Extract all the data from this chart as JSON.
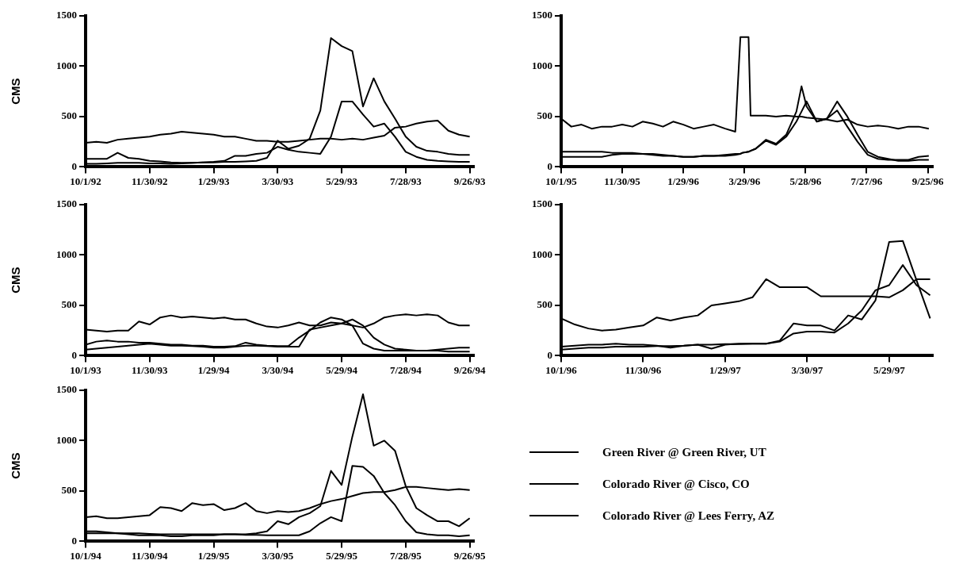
{
  "chart_data": [
    {
      "type": "line",
      "ylabel": "CMS",
      "ylim": [
        0,
        1500
      ],
      "yticks": [
        0,
        500,
        1000,
        1500
      ],
      "xlim": [
        "1992-10-01",
        "1993-09-30"
      ],
      "xticks": [
        {
          "value": "1992-10-01",
          "label": "10/1/92"
        },
        {
          "value": "1992-11-30",
          "label": "11/30/92"
        },
        {
          "value": "1993-01-29",
          "label": "1/29/93"
        },
        {
          "value": "1993-03-30",
          "label": "3/30/93"
        },
        {
          "value": "1993-05-29",
          "label": "5/29/93"
        },
        {
          "value": "1993-07-28",
          "label": "7/28/93"
        },
        {
          "value": "1993-09-26",
          "label": "9/26/93"
        }
      ],
      "x": [
        "1992-10-01",
        "1992-10-11",
        "1992-10-21",
        "1992-10-31",
        "1992-11-10",
        "1992-11-20",
        "1992-11-30",
        "1992-12-10",
        "1992-12-20",
        "1992-12-30",
        "1993-01-09",
        "1993-01-19",
        "1993-01-29",
        "1993-02-08",
        "1993-02-18",
        "1993-02-28",
        "1993-03-10",
        "1993-03-20",
        "1993-03-30",
        "1993-04-09",
        "1993-04-19",
        "1993-04-29",
        "1993-05-09",
        "1993-05-19",
        "1993-05-29",
        "1993-06-08",
        "1993-06-18",
        "1993-06-28",
        "1993-07-08",
        "1993-07-18",
        "1993-07-28",
        "1993-08-07",
        "1993-08-17",
        "1993-08-27",
        "1993-09-06",
        "1993-09-16",
        "1993-09-26"
      ],
      "series": [
        {
          "color": "#000000",
          "values": [
            80,
            80,
            80,
            140,
            90,
            80,
            60,
            55,
            45,
            40,
            40,
            45,
            45,
            50,
            50,
            55,
            60,
            90,
            260,
            180,
            210,
            280,
            560,
            1280,
            1200,
            1150,
            600,
            880,
            650,
            480,
            300,
            200,
            160,
            150,
            130,
            120,
            120
          ]
        },
        {
          "color": "#000000",
          "values": [
            30,
            30,
            35,
            40,
            40,
            40,
            35,
            35,
            30,
            35,
            40,
            45,
            50,
            60,
            110,
            110,
            130,
            140,
            200,
            170,
            150,
            140,
            130,
            300,
            650,
            650,
            520,
            400,
            430,
            300,
            150,
            100,
            70,
            60,
            55,
            50,
            50
          ]
        },
        {
          "color": "#000000",
          "values": [
            240,
            250,
            240,
            270,
            280,
            290,
            300,
            320,
            330,
            350,
            340,
            330,
            320,
            300,
            300,
            280,
            260,
            260,
            250,
            250,
            260,
            270,
            280,
            280,
            270,
            280,
            270,
            290,
            310,
            390,
            400,
            430,
            450,
            460,
            360,
            320,
            300
          ]
        }
      ]
    },
    {
      "type": "line",
      "ylim": [
        0,
        1500
      ],
      "yticks": [
        0,
        500,
        1000,
        1500
      ],
      "xlim": [
        "1995-10-01",
        "1996-09-30"
      ],
      "xticks": [
        {
          "value": "1995-10-01",
          "label": "10/1/95"
        },
        {
          "value": "1995-11-30",
          "label": "11/30/95"
        },
        {
          "value": "1996-01-29",
          "label": "1/29/96"
        },
        {
          "value": "1996-03-29",
          "label": "3/29/96"
        },
        {
          "value": "1996-05-28",
          "label": "5/28/96"
        },
        {
          "value": "1996-07-27",
          "label": "7/27/96"
        },
        {
          "value": "1996-09-25",
          "label": "9/25/96"
        }
      ],
      "x": [
        "1995-10-01",
        "1995-10-11",
        "1995-10-21",
        "1995-10-31",
        "1995-11-10",
        "1995-11-20",
        "1995-11-30",
        "1995-12-10",
        "1995-12-20",
        "1995-12-30",
        "1996-01-09",
        "1996-01-19",
        "1996-01-29",
        "1996-02-08",
        "1996-02-18",
        "1996-02-28",
        "1996-03-10",
        "1996-03-20",
        "1996-03-25",
        "1996-03-27",
        "1996-04-02",
        "1996-04-04",
        "1996-04-09",
        "1996-04-19",
        "1996-04-29",
        "1996-05-09",
        "1996-05-19",
        "1996-05-24",
        "1996-05-29",
        "1996-06-08",
        "1996-06-18",
        "1996-06-28",
        "1996-07-08",
        "1996-07-18",
        "1996-07-28",
        "1996-08-07",
        "1996-08-17",
        "1996-08-27",
        "1996-09-06",
        "1996-09-16",
        "1996-09-26"
      ],
      "series": [
        {
          "color": "#000000",
          "values": [
            150,
            150,
            150,
            150,
            150,
            140,
            140,
            140,
            130,
            120,
            110,
            110,
            100,
            100,
            110,
            110,
            110,
            120,
            130,
            140,
            150,
            160,
            180,
            270,
            230,
            320,
            550,
            800,
            600,
            450,
            480,
            560,
            400,
            250,
            120,
            80,
            70,
            70,
            70,
            100,
            110
          ]
        },
        {
          "color": "#000000",
          "values": [
            100,
            100,
            100,
            100,
            100,
            120,
            130,
            130,
            130,
            130,
            120,
            110,
            100,
            100,
            110,
            110,
            120,
            130,
            130,
            140,
            150,
            160,
            180,
            260,
            220,
            300,
            450,
            550,
            650,
            450,
            480,
            650,
            500,
            320,
            150,
            100,
            80,
            60,
            60,
            70,
            70
          ]
        },
        {
          "color": "#000000",
          "values": [
            480,
            400,
            420,
            380,
            400,
            400,
            420,
            400,
            450,
            430,
            400,
            450,
            420,
            380,
            400,
            420,
            380,
            350,
            1290,
            1290,
            1290,
            510,
            510,
            510,
            500,
            510,
            500,
            500,
            490,
            480,
            470,
            450,
            470,
            420,
            400,
            410,
            400,
            380,
            400,
            400,
            380
          ]
        }
      ]
    },
    {
      "type": "line",
      "ylabel": "CMS",
      "ylim": [
        0,
        1500
      ],
      "yticks": [
        0,
        500,
        1000,
        1500
      ],
      "xlim": [
        "1993-10-01",
        "1994-09-30"
      ],
      "xticks": [
        {
          "value": "1993-10-01",
          "label": "10/1/93"
        },
        {
          "value": "1993-11-30",
          "label": "11/30/93"
        },
        {
          "value": "1994-01-29",
          "label": "1/29/94"
        },
        {
          "value": "1994-03-30",
          "label": "3/30/94"
        },
        {
          "value": "1994-05-29",
          "label": "5/29/94"
        },
        {
          "value": "1994-07-28",
          "label": "7/28/94"
        },
        {
          "value": "1994-09-26",
          "label": "9/26/94"
        }
      ],
      "x": [
        "1993-10-01",
        "1993-10-11",
        "1993-10-21",
        "1993-10-31",
        "1993-11-10",
        "1993-11-20",
        "1993-11-30",
        "1993-12-10",
        "1993-12-20",
        "1993-12-30",
        "1994-01-09",
        "1994-01-19",
        "1994-01-29",
        "1994-02-08",
        "1994-02-18",
        "1994-02-28",
        "1994-03-10",
        "1994-03-20",
        "1994-03-30",
        "1994-04-09",
        "1994-04-19",
        "1994-04-29",
        "1994-05-09",
        "1994-05-19",
        "1994-05-29",
        "1994-06-08",
        "1994-06-18",
        "1994-06-28",
        "1994-07-08",
        "1994-07-18",
        "1994-07-28",
        "1994-08-07",
        "1994-08-17",
        "1994-08-27",
        "1994-09-06",
        "1994-09-16",
        "1994-09-26"
      ],
      "series": [
        {
          "color": "#000000",
          "values": [
            110,
            140,
            150,
            140,
            140,
            130,
            130,
            120,
            110,
            110,
            100,
            100,
            90,
            90,
            95,
            130,
            110,
            100,
            95,
            95,
            180,
            250,
            330,
            380,
            360,
            300,
            120,
            70,
            50,
            50,
            50,
            50,
            50,
            50,
            40,
            40,
            40
          ]
        },
        {
          "color": "#000000",
          "values": [
            60,
            70,
            80,
            90,
            100,
            110,
            120,
            110,
            100,
            100,
            95,
            90,
            80,
            80,
            90,
            100,
            100,
            95,
            90,
            90,
            90,
            260,
            280,
            300,
            320,
            360,
            300,
            180,
            110,
            70,
            60,
            50,
            50,
            60,
            70,
            80,
            80
          ]
        },
        {
          "color": "#000000",
          "values": [
            260,
            250,
            240,
            250,
            250,
            340,
            310,
            380,
            400,
            380,
            390,
            380,
            370,
            380,
            360,
            360,
            320,
            290,
            280,
            300,
            330,
            300,
            300,
            330,
            320,
            300,
            280,
            320,
            380,
            400,
            410,
            400,
            410,
            400,
            330,
            300,
            300
          ]
        }
      ]
    },
    {
      "type": "line",
      "ylim": [
        0,
        1500
      ],
      "yticks": [
        0,
        500,
        1000,
        1500
      ],
      "xlim": [
        "1996-10-01",
        "1997-06-30"
      ],
      "xticks": [
        {
          "value": "1996-10-01",
          "label": "10/1/96"
        },
        {
          "value": "1996-11-30",
          "label": "11/30/96"
        },
        {
          "value": "1997-01-29",
          "label": "1/29/97"
        },
        {
          "value": "1997-03-30",
          "label": "3/30/97"
        },
        {
          "value": "1997-05-29",
          "label": "5/29/97"
        }
      ],
      "x": [
        "1996-10-01",
        "1996-10-11",
        "1996-10-21",
        "1996-10-31",
        "1996-11-10",
        "1996-11-20",
        "1996-11-30",
        "1996-12-10",
        "1996-12-20",
        "1996-12-30",
        "1997-01-09",
        "1997-01-19",
        "1997-01-29",
        "1997-02-08",
        "1997-02-18",
        "1997-02-28",
        "1997-03-10",
        "1997-03-20",
        "1997-03-30",
        "1997-04-09",
        "1997-04-19",
        "1997-04-29",
        "1997-05-09",
        "1997-05-19",
        "1997-05-29",
        "1997-06-08",
        "1997-06-18",
        "1997-06-28"
      ],
      "series": [
        {
          "color": "#000000",
          "values": [
            90,
            100,
            110,
            110,
            120,
            110,
            110,
            100,
            80,
            100,
            110,
            70,
            110,
            120,
            120,
            120,
            150,
            320,
            300,
            300,
            250,
            400,
            360,
            550,
            1130,
            1140,
            750,
            370
          ]
        },
        {
          "color": "#000000",
          "values": [
            60,
            70,
            80,
            80,
            90,
            90,
            90,
            95,
            95,
            100,
            110,
            110,
            115,
            115,
            120,
            120,
            140,
            220,
            240,
            240,
            230,
            320,
            450,
            650,
            700,
            900,
            700,
            600
          ]
        },
        {
          "color": "#000000",
          "values": [
            370,
            310,
            270,
            250,
            260,
            280,
            300,
            380,
            350,
            380,
            400,
            500,
            520,
            540,
            580,
            760,
            680,
            680,
            680,
            590,
            590,
            590,
            590,
            590,
            580,
            650,
            760,
            760
          ]
        }
      ]
    },
    {
      "type": "line",
      "ylabel": "CMS",
      "ylim": [
        0,
        1500
      ],
      "yticks": [
        0,
        500,
        1000,
        1500
      ],
      "xlim": [
        "1994-10-01",
        "1995-09-30"
      ],
      "legend": "right",
      "xticks": [
        {
          "value": "1994-10-01",
          "label": "10/1/94"
        },
        {
          "value": "1994-11-30",
          "label": "11/30/94"
        },
        {
          "value": "1995-01-29",
          "label": "1/29/95"
        },
        {
          "value": "1995-03-30",
          "label": "3/30/95"
        },
        {
          "value": "1995-05-29",
          "label": "5/29/95"
        },
        {
          "value": "1995-07-28",
          "label": "7/28/95"
        },
        {
          "value": "1995-09-26",
          "label": "9/26/95"
        }
      ],
      "x": [
        "1994-10-01",
        "1994-10-11",
        "1994-10-21",
        "1994-10-31",
        "1994-11-10",
        "1994-11-20",
        "1994-11-30",
        "1994-12-10",
        "1994-12-20",
        "1994-12-30",
        "1995-01-09",
        "1995-01-19",
        "1995-01-29",
        "1995-02-08",
        "1995-02-18",
        "1995-02-28",
        "1995-03-10",
        "1995-03-20",
        "1995-03-30",
        "1995-04-09",
        "1995-04-19",
        "1995-04-29",
        "1995-05-09",
        "1995-05-19",
        "1995-05-29",
        "1995-06-08",
        "1995-06-18",
        "1995-06-28",
        "1995-07-08",
        "1995-07-18",
        "1995-07-28",
        "1995-08-07",
        "1995-08-17",
        "1995-08-27",
        "1995-09-06",
        "1995-09-16",
        "1995-09-26"
      ],
      "series": [
        {
          "name": "Green River @ Green River, UT",
          "color": "#000000",
          "values": [
            100,
            100,
            90,
            80,
            70,
            60,
            60,
            60,
            50,
            50,
            60,
            60,
            60,
            70,
            70,
            70,
            80,
            100,
            200,
            170,
            240,
            280,
            350,
            700,
            560,
            1040,
            1460,
            950,
            1000,
            900,
            550,
            330,
            260,
            200,
            200,
            150,
            230
          ]
        },
        {
          "name": "Colorado River @ Cisco, CO",
          "color": "#000000",
          "values": [
            80,
            80,
            80,
            80,
            80,
            80,
            75,
            70,
            70,
            70,
            70,
            70,
            70,
            70,
            70,
            65,
            65,
            60,
            60,
            60,
            60,
            100,
            180,
            240,
            200,
            750,
            740,
            650,
            480,
            360,
            200,
            90,
            70,
            60,
            60,
            50,
            60
          ]
        },
        {
          "name": "Colorado River @ Lees Ferry, AZ",
          "color": "#000000",
          "values": [
            240,
            250,
            230,
            230,
            240,
            250,
            260,
            340,
            330,
            300,
            380,
            360,
            370,
            310,
            330,
            380,
            300,
            280,
            300,
            290,
            300,
            330,
            370,
            400,
            420,
            450,
            480,
            490,
            490,
            510,
            540,
            540,
            530,
            520,
            510,
            520,
            510
          ]
        }
      ]
    }
  ]
}
